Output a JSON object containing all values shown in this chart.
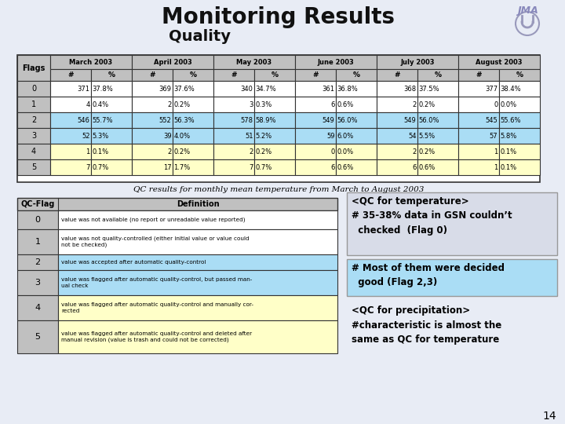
{
  "title": "Monitoring Results",
  "subtitle": "Quality",
  "bg_color": "#e8ecf5",
  "caption": "QC results for monthly mean temperature from March to August 2003",
  "page_number": "14",
  "months": [
    "March 2003",
    "April 2003",
    "May 2003",
    "June 2003",
    "July 2003",
    "August 2003"
  ],
  "top_rows": [
    [
      0,
      371,
      "37.8%",
      369,
      "37.6%",
      340,
      "34.7%",
      361,
      "36.8%",
      368,
      "37.5%",
      377,
      "38.4%"
    ],
    [
      1,
      4,
      "0.4%",
      2,
      "0.2%",
      3,
      "0.3%",
      6,
      "0.6%",
      2,
      "0.2%",
      0,
      "0.0%"
    ],
    [
      2,
      546,
      "55.7%",
      552,
      "56.3%",
      578,
      "58.9%",
      549,
      "56.0%",
      549,
      "56.0%",
      545,
      "55.6%"
    ],
    [
      3,
      52,
      "5.3%",
      39,
      "4.0%",
      51,
      "5.2%",
      59,
      "6.0%",
      54,
      "5.5%",
      57,
      "5.8%"
    ],
    [
      4,
      1,
      "0.1%",
      2,
      "0.2%",
      2,
      "0.2%",
      0,
      "0.0%",
      2,
      "0.2%",
      1,
      "0.1%"
    ],
    [
      5,
      7,
      "0.7%",
      17,
      "1.7%",
      7,
      "0.7%",
      6,
      "0.6%",
      6,
      "0.6%",
      1,
      "0.1%"
    ]
  ],
  "top_row_fill": [
    "#ffffff",
    "#ffffff",
    "#aaddf5",
    "#aaddf5",
    "#ffffc8",
    "#ffffc8"
  ],
  "bt_rows": [
    [
      0,
      "value was not available (no report or unreadable value reported)"
    ],
    [
      1,
      "value was not quality-controlled (either initial value or value could\nnot be checked)"
    ],
    [
      2,
      "value was accepted after automatic quality-control"
    ],
    [
      3,
      "value was flagged after automatic quality-control, but passed man-\nual check"
    ],
    [
      4,
      "value was flagged after automatic quality-control and manually cor-\nrected"
    ],
    [
      5,
      "value was flagged after automatic quality-control and deleted after\nmanual revision (value is trash and could not be corrected)"
    ]
  ],
  "bt_row_fill": [
    "#ffffff",
    "#ffffff",
    "#aaddf5",
    "#aaddf5",
    "#ffffc8",
    "#ffffc8"
  ],
  "ann1_text": "<QC for temperature>\n# 35-38% data in GSN couldn’t\n  checked  (Flag 0)",
  "ann1_bg": "#d8dce8",
  "ann2_text": "# Most of them were decided\n  good (Flag 2,3)",
  "ann2_bg": "#aaddf5",
  "ann3_text": "<QC for precipitation>\n#characteristic is almost the\nsame as QC for temperature",
  "ann3_bg": "#e8ecf5",
  "header_fill": "#c0c0c0",
  "header_fill2": "#d8d8d8"
}
